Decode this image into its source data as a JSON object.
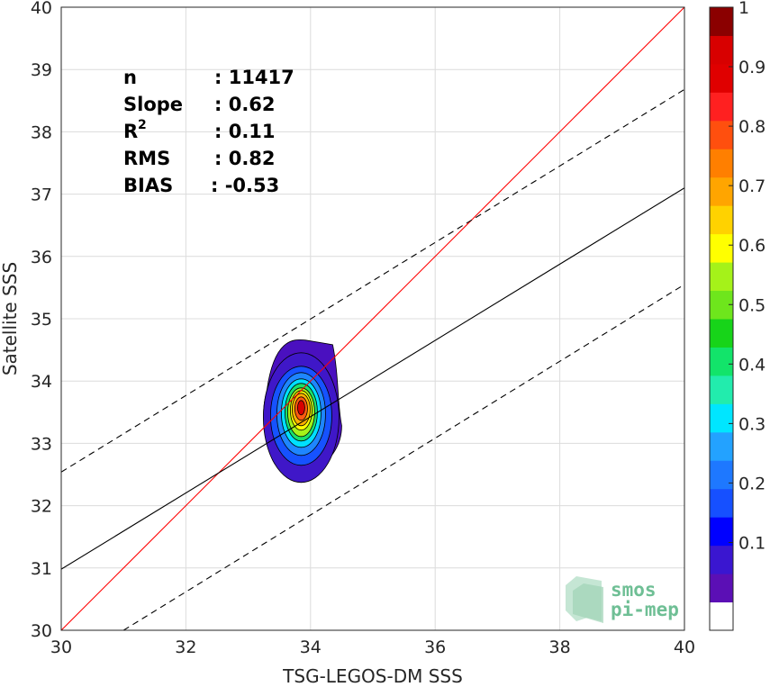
{
  "chart_data": {
    "type": "contour",
    "xlabel": "TSG-LEGOS-DM SSS",
    "ylabel": "Satellite SSS",
    "xlim": [
      30,
      40
    ],
    "ylim": [
      30,
      40
    ],
    "xticks": [
      "30",
      "32",
      "34",
      "36",
      "38",
      "40"
    ],
    "yticks": [
      "30",
      "31",
      "32",
      "33",
      "34",
      "35",
      "36",
      "37",
      "38",
      "39",
      "40"
    ],
    "grid": true,
    "stats": [
      {
        "label": "n",
        "value": ": 11417"
      },
      {
        "label": "Slope",
        "value": ": 0.62"
      },
      {
        "label": "R",
        "sup": "2",
        "value": ": 0.11"
      },
      {
        "label": "RMS",
        "value": ": 0.82"
      },
      {
        "label": "BIAS",
        "value": ": -0.53"
      }
    ],
    "lines": [
      {
        "kind": "identity",
        "color": "#ff0000",
        "style": "solid",
        "x": [
          30,
          40
        ],
        "y": [
          30,
          40
        ]
      },
      {
        "kind": "regression",
        "color": "#000000",
        "style": "solid",
        "x": [
          30,
          40
        ],
        "y": [
          30.98,
          37.1
        ]
      },
      {
        "kind": "upper-bound",
        "color": "#000000",
        "style": "dashed",
        "x": [
          30,
          40
        ],
        "y": [
          32.54,
          38.68
        ]
      },
      {
        "kind": "lower-bound",
        "color": "#000000",
        "style": "dashed",
        "x": [
          31,
          40
        ],
        "y": [
          30,
          35.55
        ]
      }
    ],
    "density_center": {
      "x": 33.85,
      "y": 33.5
    },
    "contour_levels": [
      0.05,
      0.2,
      0.3,
      0.4,
      0.5,
      0.6,
      0.7,
      0.8,
      0.9
    ],
    "colorbar": {
      "ticks": [
        "0.1",
        "0.2",
        "0.3",
        "0.4",
        "0.5",
        "0.6",
        "0.7",
        "0.8",
        "0.9",
        "1"
      ],
      "colors": [
        "#ffffff",
        "#5b0fb5",
        "#3a16d0",
        "#0000ff",
        "#1650ff",
        "#1e78ff",
        "#23a2ff",
        "#00e6ff",
        "#22ecad",
        "#12e46a",
        "#17d419",
        "#6ee61c",
        "#a5f219",
        "#ffff00",
        "#ffd200",
        "#ffa500",
        "#ff7f00",
        "#ff4f0e",
        "#ff2020",
        "#e00000",
        "#d80000",
        "#8b0000"
      ]
    }
  },
  "logo": {
    "line1": "smos",
    "line2": "pi-mep"
  }
}
